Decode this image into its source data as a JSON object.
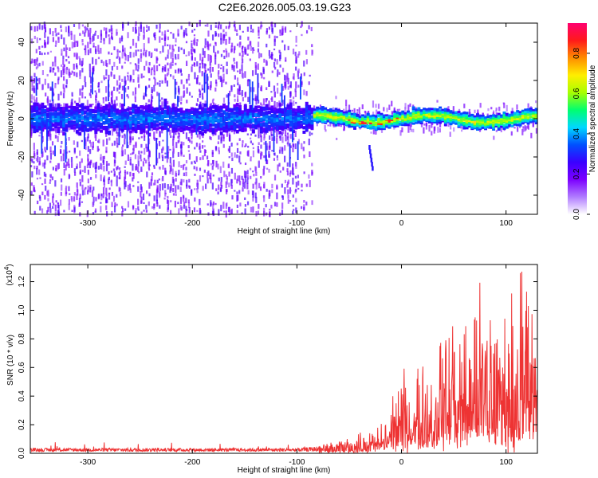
{
  "title": "C2E6.2026.005.03.19.G23",
  "chart_data": [
    {
      "type": "heatmap",
      "name": "spectrogram",
      "xlabel": "Height of straight line (km)",
      "ylabel": "Frequency (Hz)",
      "xlim": [
        -355,
        130
      ],
      "ylim": [
        -50,
        50
      ],
      "xticks": [
        -300,
        -200,
        -100,
        0,
        100
      ],
      "yticks": [
        -40,
        -20,
        0,
        20,
        40
      ],
      "colorbar": {
        "label": "Normalized spectral amplitude",
        "range": [
          0.0,
          0.95
        ],
        "ticks": [
          "0.0",
          "0.2",
          "0.4",
          "0.6",
          "0.8"
        ],
        "tick_values": [
          0.0,
          0.2,
          0.4,
          0.6,
          0.8
        ],
        "colors": [
          "#ffffff",
          "#b07cff",
          "#7c00ff",
          "#3a00ff",
          "#0050ff",
          "#00d8ff",
          "#00ff70",
          "#a8ff00",
          "#ffee00",
          "#ff8c00",
          "#ff1a1a",
          "#ff0070"
        ]
      },
      "band": {
        "center_freq_hz": 0,
        "noise_x_range_km": [
          -355,
          -85
        ],
        "signal_x_range_km": [
          -100,
          130
        ],
        "feature": {
          "x_km": -30,
          "freq_hz": -23
        }
      }
    },
    {
      "type": "line",
      "name": "snr",
      "xlabel": "Height of straight line (km)",
      "ylabel": "SNR (10 * v/v)",
      "y_scale_label": "(x10",
      "y_scale_exp": "4",
      "xlim": [
        -355,
        130
      ],
      "ylim": [
        0,
        1.32
      ],
      "xticks": [
        -300,
        -200,
        -100,
        0,
        100
      ],
      "yticks": [
        "0.0",
        "0.2",
        "0.4",
        "0.6",
        "0.8",
        "1.0",
        "1.2"
      ],
      "ytick_values": [
        0.0,
        0.2,
        0.4,
        0.6,
        0.8,
        1.0,
        1.2
      ],
      "color": "#ee3333",
      "approx_envelope": {
        "x_km": [
          -355,
          -100,
          -60,
          -20,
          -5,
          20,
          40,
          60,
          80,
          100,
          120,
          130
        ],
        "upper_x1e4": [
          0.04,
          0.04,
          0.08,
          0.18,
          0.45,
          0.6,
          0.85,
          0.9,
          1.05,
          0.95,
          1.32,
          0.8
        ]
      }
    }
  ]
}
